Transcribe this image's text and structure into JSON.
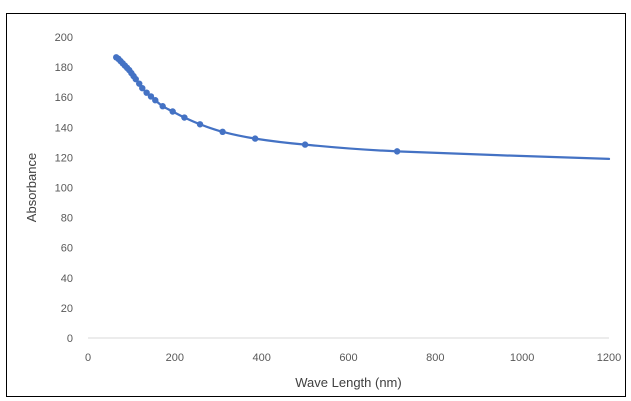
{
  "chart_data": {
    "type": "scatter",
    "title": "",
    "xlabel": "Wave Length (nm)",
    "ylabel": "Absorbance",
    "xlim": [
      0,
      1200
    ],
    "ylim": [
      0,
      200
    ],
    "x_ticks": [
      0,
      200,
      400,
      600,
      800,
      1000,
      1200
    ],
    "y_ticks": [
      0,
      20,
      40,
      60,
      80,
      100,
      120,
      140,
      160,
      180,
      200
    ],
    "grid": false,
    "legend": "none",
    "series_color": "#4472C4",
    "series": [
      {
        "markers": true,
        "smooth_line": true,
        "points": [
          {
            "x": 65,
            "y": 186.5
          },
          {
            "x": 70,
            "y": 185.5
          },
          {
            "x": 75,
            "y": 184
          },
          {
            "x": 80,
            "y": 182.5
          },
          {
            "x": 85,
            "y": 181
          },
          {
            "x": 90,
            "y": 179.5
          },
          {
            "x": 95,
            "y": 178
          },
          {
            "x": 100,
            "y": 176
          },
          {
            "x": 105,
            "y": 174
          },
          {
            "x": 110,
            "y": 172
          },
          {
            "x": 118,
            "y": 169
          },
          {
            "x": 125,
            "y": 166
          },
          {
            "x": 135,
            "y": 163
          },
          {
            "x": 145,
            "y": 160.5
          },
          {
            "x": 155,
            "y": 158
          },
          {
            "x": 172,
            "y": 154
          },
          {
            "x": 195,
            "y": 150.5
          },
          {
            "x": 222,
            "y": 146.5
          },
          {
            "x": 258,
            "y": 142
          },
          {
            "x": 310,
            "y": 137
          },
          {
            "x": 385,
            "y": 132.5
          },
          {
            "x": 500,
            "y": 128.5
          },
          {
            "x": 712,
            "y": 124
          }
        ],
        "line_end": {
          "x": 1200,
          "y": 119
        }
      }
    ]
  }
}
